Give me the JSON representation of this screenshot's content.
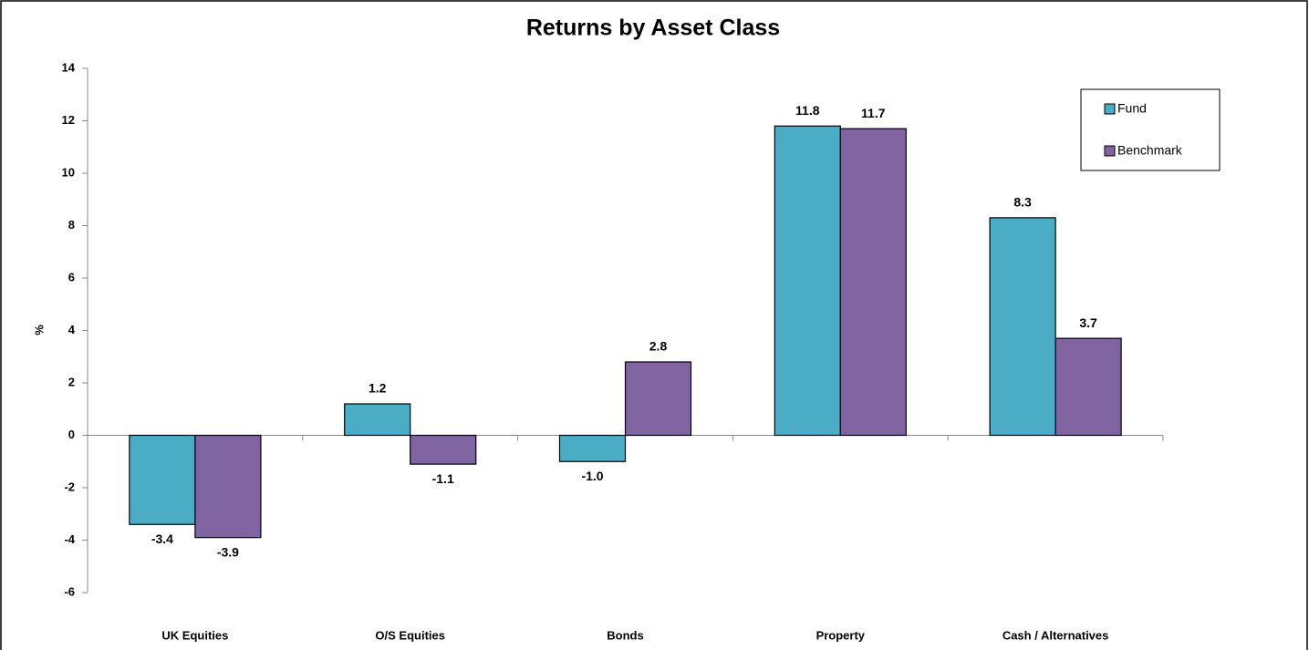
{
  "chart_data": {
    "type": "bar",
    "title": "Returns by Asset Class",
    "y_label": "%",
    "categories": [
      "UK Equities",
      "O/S Equities",
      "Bonds",
      "Property",
      "Cash / Alternatives"
    ],
    "series": [
      {
        "name": "Fund",
        "color": "#4bacc6",
        "values": [
          -3.4,
          1.2,
          -1.0,
          11.8,
          8.3
        ],
        "value_labels": [
          "-3.4",
          "1.2",
          "-1.0",
          "11.8",
          "8.3"
        ]
      },
      {
        "name": "Benchmark",
        "color": "#8064a2",
        "values": [
          -3.9,
          -1.1,
          2.8,
          11.7,
          3.7
        ],
        "value_labels": [
          "-3.9",
          "-1.1",
          "2.8",
          "11.7",
          "3.7"
        ]
      }
    ],
    "ylim": [
      -6,
      14
    ],
    "yticks": [
      -6,
      -4,
      -2,
      0,
      2,
      4,
      6,
      8,
      10,
      12,
      14
    ],
    "legend": "upper right"
  }
}
